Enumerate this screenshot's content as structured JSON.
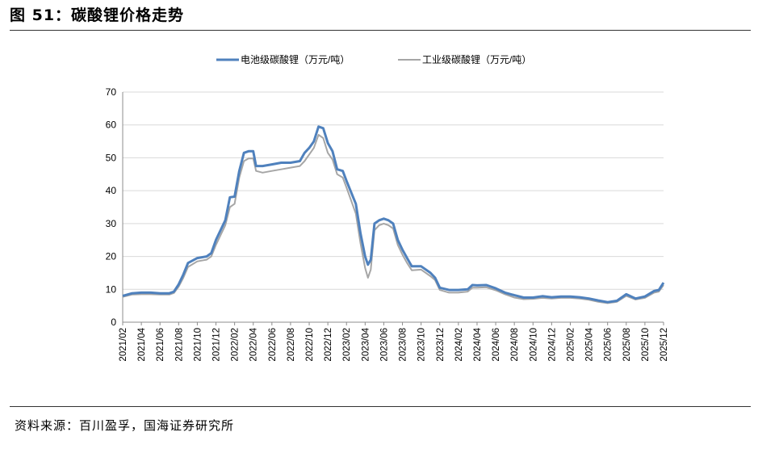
{
  "header": {
    "title": "图 51：碳酸锂价格走势"
  },
  "footer": {
    "source": "资料来源：百川盈孚，国海证券研究所"
  },
  "chart_data": {
    "type": "line",
    "title": "",
    "xlabel": "",
    "ylabel": "",
    "ylim": [
      0,
      70
    ],
    "yticks": [
      0,
      10,
      20,
      30,
      40,
      50,
      60,
      70
    ],
    "grid": "horizontal",
    "legend": "top-center",
    "xlim": [
      "2021/02",
      "2025/12"
    ],
    "xticks": [
      "2021/02",
      "2021/04",
      "2021/06",
      "2021/08",
      "2021/10",
      "2021/12",
      "2022/02",
      "2022/04",
      "2022/06",
      "2022/08",
      "2022/10",
      "2022/12",
      "2023/02",
      "2023/04",
      "2023/06",
      "2023/08",
      "2023/10",
      "2023/12",
      "2024/02",
      "2024/04",
      "2024/06",
      "2024/08",
      "2024/10",
      "2024/12",
      "2025/02",
      "2025/04",
      "2025/06",
      "2025/08",
      "2025/10",
      "2025/12"
    ],
    "series": [
      {
        "name": "电池级碳酸锂（万元/吨）",
        "color": "#4f81bd",
        "points": [
          [
            "2021/02",
            8.0
          ],
          [
            "2021/03",
            8.8
          ],
          [
            "2021/04",
            9.0
          ],
          [
            "2021/05",
            9.0
          ],
          [
            "2021/06",
            8.8
          ],
          [
            "2021/07",
            8.8
          ],
          [
            "2021/07.5",
            9.3
          ],
          [
            "2021/08",
            11.5
          ],
          [
            "2021/08.5",
            14.5
          ],
          [
            "2021/09",
            18.0
          ],
          [
            "2021/10",
            19.5
          ],
          [
            "2021/11",
            20.0
          ],
          [
            "2021/11.5",
            21.0
          ],
          [
            "2021/12",
            25.0
          ],
          [
            "2022/01",
            31.0
          ],
          [
            "2022/01.5",
            38.0
          ],
          [
            "2022/02",
            38.2
          ],
          [
            "2022/02.5",
            46.0
          ],
          [
            "2022/03",
            51.5
          ],
          [
            "2022/03.5",
            52.0
          ],
          [
            "2022/04",
            52.0
          ],
          [
            "2022/04.3",
            47.5
          ],
          [
            "2022/05",
            47.5
          ],
          [
            "2022/06",
            48.0
          ],
          [
            "2022/07",
            48.5
          ],
          [
            "2022/08",
            48.5
          ],
          [
            "2022/09",
            49.0
          ],
          [
            "2022/09.5",
            51.5
          ],
          [
            "2022/10",
            53.0
          ],
          [
            "2022/10.5",
            55.0
          ],
          [
            "2022/11",
            59.5
          ],
          [
            "2022/11.5",
            59.0
          ],
          [
            "2022/12",
            54.5
          ],
          [
            "2022/12.5",
            52.0
          ],
          [
            "2023/01",
            46.5
          ],
          [
            "2023/01.6",
            46.0
          ],
          [
            "2023/02",
            43.0
          ],
          [
            "2023/03",
            36.0
          ],
          [
            "2023/03.5",
            27.0
          ],
          [
            "2023/04",
            20.0
          ],
          [
            "2023/04.3",
            17.5
          ],
          [
            "2023/04.6",
            19.0
          ],
          [
            "2023/05",
            30.0
          ],
          [
            "2023/05.5",
            31.0
          ],
          [
            "2023/06",
            31.5
          ],
          [
            "2023/06.5",
            31.0
          ],
          [
            "2023/07",
            30.0
          ],
          [
            "2023/07.5",
            25.0
          ],
          [
            "2023/08",
            22.0
          ],
          [
            "2023/08.5",
            19.5
          ],
          [
            "2023/09",
            17.0
          ],
          [
            "2023/10",
            17.0
          ],
          [
            "2023/11",
            15.0
          ],
          [
            "2023/11.5",
            13.5
          ],
          [
            "2023/12",
            10.5
          ],
          [
            "2024/01",
            9.8
          ],
          [
            "2024/02",
            9.8
          ],
          [
            "2024/03",
            10.0
          ],
          [
            "2024/03.5",
            11.3
          ],
          [
            "2024/04",
            11.2
          ],
          [
            "2024/05",
            11.3
          ],
          [
            "2024/06",
            10.3
          ],
          [
            "2024/07",
            9.0
          ],
          [
            "2024/08",
            8.2
          ],
          [
            "2024/09",
            7.5
          ],
          [
            "2024/10",
            7.5
          ],
          [
            "2024/11",
            7.9
          ],
          [
            "2024/12",
            7.6
          ],
          [
            "2025/01",
            7.8
          ],
          [
            "2025/02",
            7.8
          ],
          [
            "2025/03",
            7.6
          ],
          [
            "2025/04",
            7.2
          ],
          [
            "2025/05",
            6.6
          ],
          [
            "2025/06",
            6.1
          ],
          [
            "2025/07",
            6.5
          ],
          [
            "2025/08",
            8.5
          ],
          [
            "2025/09",
            7.2
          ],
          [
            "2025/10",
            7.8
          ],
          [
            "2025/11",
            9.5
          ],
          [
            "2025/11.5",
            9.8
          ],
          [
            "2025/12",
            12.0
          ]
        ]
      },
      {
        "name": "工业级碳酸锂（万元/吨）",
        "color": "#a6a6a6",
        "points": [
          [
            "2021/02",
            7.7
          ],
          [
            "2021/03",
            8.4
          ],
          [
            "2021/04",
            8.5
          ],
          [
            "2021/05",
            8.5
          ],
          [
            "2021/06",
            8.4
          ],
          [
            "2021/07",
            8.4
          ],
          [
            "2021/07.5",
            8.9
          ],
          [
            "2021/08",
            10.8
          ],
          [
            "2021/08.5",
            13.5
          ],
          [
            "2021/09",
            16.8
          ],
          [
            "2021/10",
            18.5
          ],
          [
            "2021/11",
            19.0
          ],
          [
            "2021/11.5",
            20.0
          ],
          [
            "2021/12",
            23.5
          ],
          [
            "2022/01",
            29.5
          ],
          [
            "2022/01.5",
            35.0
          ],
          [
            "2022/02",
            36.0
          ],
          [
            "2022/02.5",
            44.0
          ],
          [
            "2022/03",
            49.0
          ],
          [
            "2022/03.5",
            49.8
          ],
          [
            "2022/04",
            49.8
          ],
          [
            "2022/04.3",
            46.0
          ],
          [
            "2022/05",
            45.5
          ],
          [
            "2022/06",
            46.0
          ],
          [
            "2022/07",
            46.5
          ],
          [
            "2022/08",
            47.0
          ],
          [
            "2022/09",
            47.5
          ],
          [
            "2022/09.5",
            49.0
          ],
          [
            "2022/10",
            51.0
          ],
          [
            "2022/10.5",
            53.0
          ],
          [
            "2022/11",
            57.0
          ],
          [
            "2022/11.5",
            56.0
          ],
          [
            "2022/12",
            51.5
          ],
          [
            "2022/12.5",
            49.5
          ],
          [
            "2023/01",
            45.0
          ],
          [
            "2023/01.6",
            44.0
          ],
          [
            "2023/02",
            41.0
          ],
          [
            "2023/03",
            33.0
          ],
          [
            "2023/03.5",
            24.0
          ],
          [
            "2023/04",
            16.5
          ],
          [
            "2023/04.3",
            13.5
          ],
          [
            "2023/04.6",
            16.0
          ],
          [
            "2023/05",
            28.0
          ],
          [
            "2023/05.5",
            29.5
          ],
          [
            "2023/06",
            30.0
          ],
          [
            "2023/06.5",
            29.5
          ],
          [
            "2023/07",
            28.5
          ],
          [
            "2023/07.5",
            23.5
          ],
          [
            "2023/08",
            20.5
          ],
          [
            "2023/08.5",
            18.0
          ],
          [
            "2023/09",
            15.8
          ],
          [
            "2023/10",
            16.0
          ],
          [
            "2023/11",
            14.0
          ],
          [
            "2023/11.5",
            12.8
          ],
          [
            "2023/12",
            9.8
          ],
          [
            "2024/01",
            9.0
          ],
          [
            "2024/02",
            9.0
          ],
          [
            "2024/03",
            9.3
          ],
          [
            "2024/03.5",
            10.5
          ],
          [
            "2024/04",
            10.5
          ],
          [
            "2024/05",
            10.6
          ],
          [
            "2024/06",
            9.7
          ],
          [
            "2024/07",
            8.5
          ],
          [
            "2024/08",
            7.5
          ],
          [
            "2024/09",
            7.0
          ],
          [
            "2024/10",
            7.1
          ],
          [
            "2024/11",
            7.4
          ],
          [
            "2024/12",
            7.2
          ],
          [
            "2025/01",
            7.4
          ],
          [
            "2025/02",
            7.4
          ],
          [
            "2025/03",
            7.2
          ],
          [
            "2025/04",
            6.8
          ],
          [
            "2025/05",
            6.2
          ],
          [
            "2025/06",
            5.8
          ],
          [
            "2025/07",
            6.2
          ],
          [
            "2025/08",
            8.0
          ],
          [
            "2025/09",
            6.9
          ],
          [
            "2025/10",
            7.4
          ],
          [
            "2025/11",
            9.0
          ],
          [
            "2025/11.5",
            9.3
          ],
          [
            "2025/12",
            11.3
          ]
        ]
      }
    ]
  }
}
